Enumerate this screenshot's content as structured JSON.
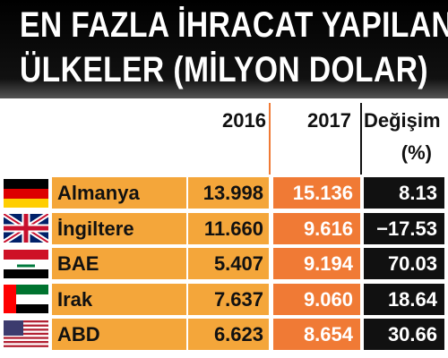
{
  "header": {
    "title": [
      "EN FAZLA İHRACAT YAPILAN",
      "ÜLKELER (MİLYON DOLAR)"
    ]
  },
  "table": {
    "columns": [
      "2016",
      "2017",
      "Değişim"
    ],
    "change_unit": "(%)",
    "rows": [
      [
        "Almanya",
        "13.998",
        "15.136",
        "8.13"
      ],
      [
        "İngiltere",
        "11.660",
        "9.616",
        "−17.53"
      ],
      [
        "BAE",
        "5.407",
        "9.194",
        "70.03"
      ],
      [
        "Irak",
        "7.637",
        "9.060",
        "18.64"
      ],
      [
        "ABD",
        "6.623",
        "8.654",
        "30.66"
      ]
    ]
  }
}
